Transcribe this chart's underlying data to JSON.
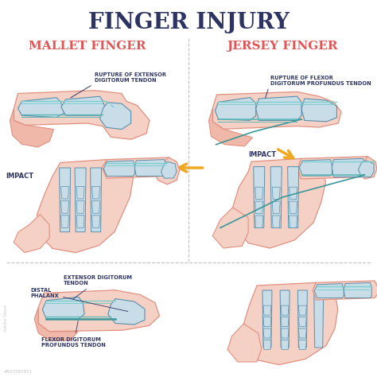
{
  "title": "FINGER INJURY",
  "title_color": "#2d3461",
  "title_fontsize": 20,
  "subtitle_left": "MALLET FINGER",
  "subtitle_right": "JERSEY FINGER",
  "subtitle_color": "#e05555",
  "subtitle_fontsize": 11,
  "label_color": "#2d3461",
  "label_fontsize": 5.0,
  "bg_color": "#ffffff",
  "skin_light": "#f5d0c5",
  "skin_mid": "#f0b8a8",
  "skin_dark": "#e09080",
  "bone_fill": "#c8dde8",
  "bone_outline": "#5a8faa",
  "tendon_ext": "#7acece",
  "tendon_flex": "#5ab8b8",
  "tendon_dark": "#3a9898",
  "arrow_color": "#f0a820",
  "line_div": "#c0c0c0",
  "impact_color": "#2d3461",
  "watermark": "#507207871"
}
